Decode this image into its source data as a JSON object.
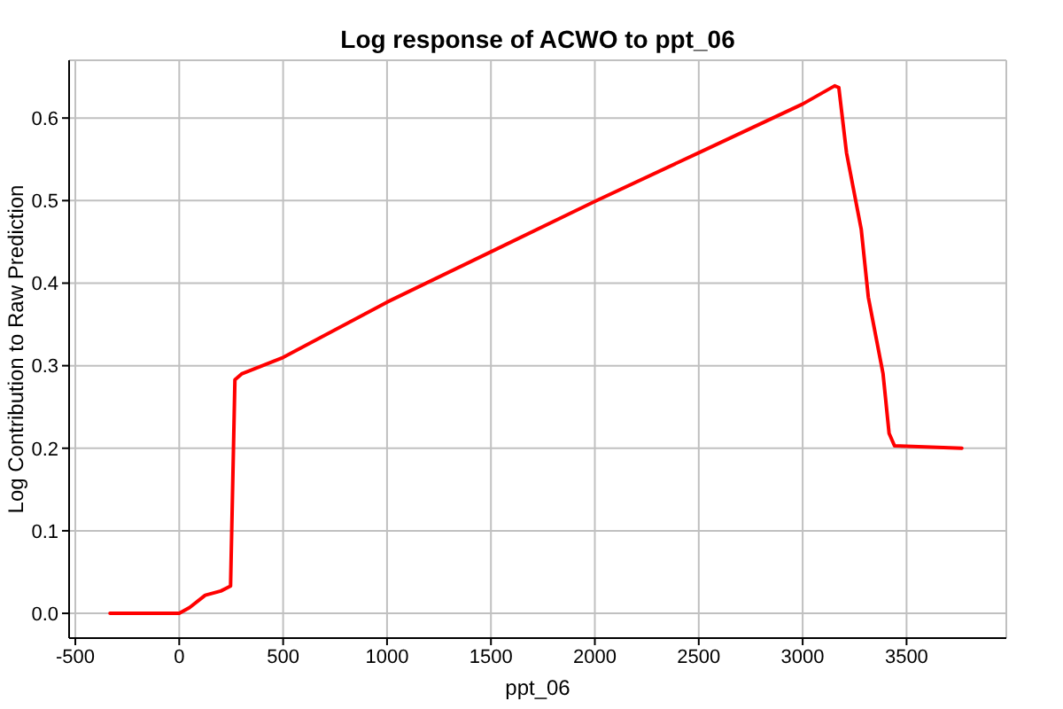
{
  "chart_data": {
    "type": "line",
    "title": "Log response of ACWO to ppt_06",
    "xlabel": "ppt_06",
    "ylabel": "Log Contribution to Raw Prediction",
    "x": [
      -333,
      0,
      50,
      125,
      200,
      247,
      268,
      300,
      500,
      1000,
      1500,
      2000,
      2500,
      3000,
      3154,
      3174,
      3211,
      3282,
      3316,
      3387,
      3416,
      3442,
      3766
    ],
    "series": [
      {
        "color": "#ff0000",
        "values": [
          0,
          0,
          0.007,
          0.022,
          0.027,
          0.033,
          0.283,
          0.29,
          0.31,
          0.377,
          0.438,
          0.499,
          0.558,
          0.617,
          0.639,
          0.637,
          0.558,
          0.465,
          0.383,
          0.29,
          0.218,
          0.203,
          0.2
        ]
      }
    ],
    "xlim": [
      -530,
      3980
    ],
    "xticks": [
      -500,
      0,
      500,
      1000,
      1500,
      2000,
      2500,
      3000,
      3500
    ],
    "ylim": [
      -0.03,
      0.67
    ],
    "yticks": [
      {
        "value": 0,
        "label": "0.0"
      },
      0.1,
      0.2,
      0.3,
      0.4,
      0.5,
      0.6
    ],
    "grid": true
  }
}
